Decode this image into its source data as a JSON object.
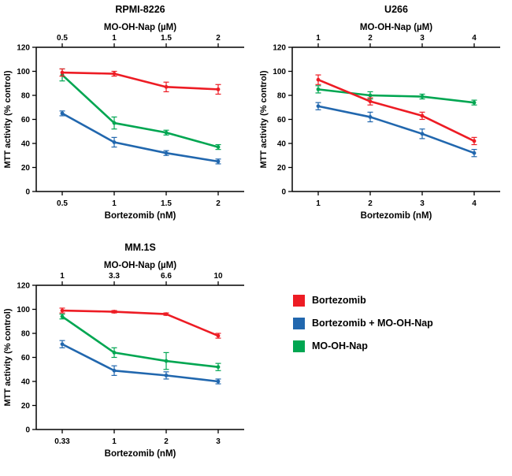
{
  "page": {
    "background": "#ffffff"
  },
  "colors": {
    "bortezomib": "#ed1c24",
    "combo": "#2167ae",
    "mo_oh_nap": "#00a651",
    "axis": "#000000"
  },
  "legend": {
    "items": [
      {
        "label": "Bortezomib",
        "color": "#ed1c24"
      },
      {
        "label": "Bortezomib + MO-OH-Nap",
        "color": "#2167ae"
      },
      {
        "label": "MO-OH-Nap",
        "color": "#00a651"
      }
    ]
  },
  "chart_data": [
    {
      "type": "line",
      "title": "RPMI-8226",
      "top_axis_label": "MO-OH-Nap (µM)",
      "top_axis_ticks": [
        "0.5",
        "1",
        "1.5",
        "2"
      ],
      "xlabel": "Bortezomib (nM)",
      "x_ticks": [
        "0.5",
        "1",
        "1.5",
        "2"
      ],
      "ylabel": "MTT activity (% control)",
      "ylim": [
        0,
        120
      ],
      "y_ticks": [
        0,
        20,
        40,
        60,
        80,
        100,
        120
      ],
      "grid": false,
      "series": [
        {
          "name": "Bortezomib",
          "color": "#ed1c24",
          "values": [
            99,
            98,
            87,
            85
          ],
          "errors": [
            3,
            2,
            4,
            4
          ]
        },
        {
          "name": "Bortezomib + MO-OH-Nap",
          "color": "#2167ae",
          "values": [
            65,
            41,
            32,
            25
          ],
          "errors": [
            2,
            4,
            2,
            2
          ]
        },
        {
          "name": "MO-OH-Nap",
          "color": "#00a651",
          "values": [
            97,
            57,
            49,
            37
          ],
          "errors": [
            5,
            5,
            2,
            2
          ]
        }
      ]
    },
    {
      "type": "line",
      "title": "U266",
      "top_axis_label": "MO-OH-Nap (µM)",
      "top_axis_ticks": [
        "1",
        "2",
        "3",
        "4"
      ],
      "xlabel": "Bortezomib (nM)",
      "x_ticks": [
        "1",
        "2",
        "3",
        "4"
      ],
      "ylabel": "MTT activity (% control)",
      "ylim": [
        0,
        120
      ],
      "y_ticks": [
        0,
        20,
        40,
        60,
        80,
        100,
        120
      ],
      "grid": false,
      "series": [
        {
          "name": "Bortezomib",
          "color": "#ed1c24",
          "values": [
            93,
            75,
            63,
            42
          ],
          "errors": [
            4,
            3,
            3,
            3
          ]
        },
        {
          "name": "Bortezomib + MO-OH-Nap",
          "color": "#2167ae",
          "values": [
            71,
            62,
            48,
            32
          ],
          "errors": [
            3,
            4,
            4,
            3
          ]
        },
        {
          "name": "MO-OH-Nap",
          "color": "#00a651",
          "values": [
            85,
            80,
            79,
            74
          ],
          "errors": [
            3,
            3,
            2,
            2
          ]
        }
      ]
    },
    {
      "type": "line",
      "title": "MM.1S",
      "top_axis_label": "MO-OH-Nap (µM)",
      "top_axis_ticks": [
        "1",
        "3.3",
        "6.6",
        "10"
      ],
      "xlabel": "Bortezomib (nM)",
      "x_ticks": [
        "0.33",
        "1",
        "2",
        "3"
      ],
      "ylabel": "MTT activity (% control)",
      "ylim": [
        0,
        120
      ],
      "y_ticks": [
        0,
        20,
        40,
        60,
        80,
        100,
        120
      ],
      "grid": false,
      "series": [
        {
          "name": "Bortezomib",
          "color": "#ed1c24",
          "values": [
            99,
            98,
            96,
            78
          ],
          "errors": [
            2,
            1,
            1,
            2
          ]
        },
        {
          "name": "Bortezomib + MO-OH-Nap",
          "color": "#2167ae",
          "values": [
            71,
            49,
            45,
            40
          ],
          "errors": [
            3,
            4,
            3,
            2
          ]
        },
        {
          "name": "MO-OH-Nap",
          "color": "#00a651",
          "values": [
            94,
            64,
            57,
            52
          ],
          "errors": [
            2,
            4,
            7,
            3
          ]
        }
      ]
    }
  ]
}
